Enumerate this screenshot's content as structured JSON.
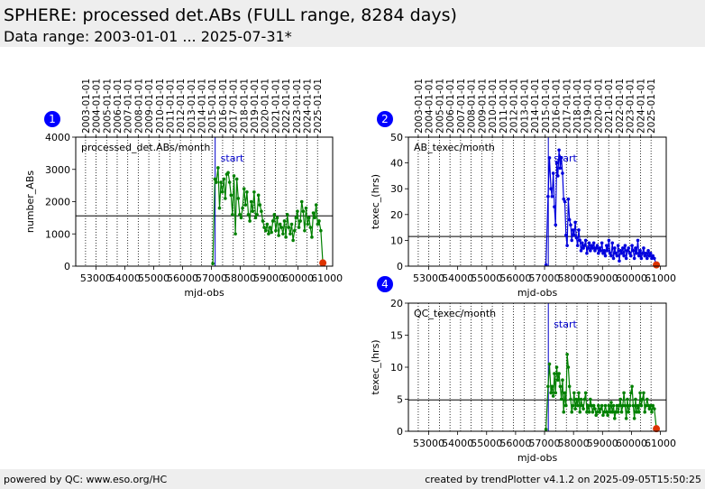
{
  "header": {
    "title": "SPHERE: processed det.ABs (FULL range, 8284 days)",
    "subtitle": "Data range: 2003-01-01 ... 2025-07-31*"
  },
  "footer": {
    "left": "powered by QC: www.eso.org/HC",
    "right": "created by trendPlotter v4.1.2 on 2025-09-05T15:50:25"
  },
  "colors": {
    "green": "#008000",
    "blue": "#0000dd",
    "badge": "#0000ff",
    "last_point": "#dd3300",
    "start_line": "#0000cc"
  },
  "chart_data": [
    {
      "id": "1",
      "type": "line",
      "annotation": "processed_det.ABs/month",
      "start_label": "start",
      "start_x": 57130,
      "xlabel": "mjd-obs",
      "ylabel": "number_ABs",
      "xlim": [
        52300,
        61200
      ],
      "ylim": [
        0,
        4000
      ],
      "xticks": [
        53000,
        54000,
        55000,
        56000,
        57000,
        58000,
        59000,
        60000,
        61000
      ],
      "yticks": [
        0,
        1000,
        2000,
        3000,
        4000
      ],
      "date_ticks": [
        "2003-01-01",
        "2004-01-01",
        "2005-01-01",
        "2006-01-01",
        "2007-01-01",
        "2008-01-01",
        "2009-01-01",
        "2010-01-01",
        "2011-01-01",
        "2012-01-01",
        "2013-01-01",
        "2014-01-01",
        "2015-01-01",
        "2016-01-01",
        "2017-01-01",
        "2018-01-01",
        "2019-01-01",
        "2020-01-01",
        "2021-01-01",
        "2022-01-01",
        "2023-01-01",
        "2024-01-01",
        "2025-01-01"
      ],
      "date_ticks_mjd": [
        52640,
        53005,
        53371,
        53736,
        54101,
        54466,
        54832,
        55197,
        55562,
        55927,
        56293,
        56658,
        57023,
        57388,
        57754,
        58119,
        58484,
        58849,
        59215,
        59580,
        59945,
        60310,
        60676
      ],
      "hline": 1560,
      "color": "green",
      "x": [
        57050,
        57120,
        57170,
        57230,
        57280,
        57330,
        57380,
        57430,
        57480,
        57530,
        57580,
        57630,
        57680,
        57730,
        57780,
        57830,
        57880,
        57930,
        57980,
        58030,
        58080,
        58130,
        58180,
        58230,
        58280,
        58330,
        58380,
        58430,
        58480,
        58530,
        58580,
        58630,
        58680,
        58730,
        58780,
        58830,
        58880,
        58930,
        58980,
        59030,
        59080,
        59130,
        59180,
        59230,
        59280,
        59330,
        59380,
        59430,
        59480,
        59530,
        59580,
        59630,
        59680,
        59730,
        59780,
        59830,
        59880,
        59930,
        59980,
        60030,
        60080,
        60130,
        60180,
        60230,
        60280,
        60330,
        60380,
        60430,
        60480,
        60530,
        60580,
        60630,
        60680,
        60730,
        60790,
        60860
      ],
      "y": [
        80,
        2700,
        2600,
        3050,
        1800,
        2600,
        2300,
        2700,
        2100,
        2850,
        2900,
        2600,
        2200,
        1600,
        2800,
        1000,
        2700,
        2100,
        1600,
        1500,
        1800,
        2400,
        1900,
        2300,
        1600,
        1400,
        2000,
        1700,
        2300,
        1500,
        1600,
        2200,
        1900,
        1700,
        1400,
        1200,
        1100,
        1300,
        1000,
        1200,
        1050,
        1400,
        1600,
        1100,
        1500,
        950,
        1300,
        1200,
        1000,
        1400,
        900,
        1600,
        1200,
        1000,
        1300,
        800,
        1100,
        1500,
        1700,
        1200,
        1400,
        2000,
        1700,
        1100,
        1800,
        1300,
        1500,
        1200,
        900,
        1650,
        1500,
        1900,
        1300,
        1400,
        1100,
        100
      ]
    },
    {
      "id": "2",
      "type": "line",
      "annotation": "AB_texec/month",
      "start_label": "start",
      "start_x": 57130,
      "xlabel": "mjd-obs",
      "ylabel": "texec_(hrs)",
      "xlim": [
        52300,
        61200
      ],
      "ylim": [
        0,
        50
      ],
      "xticks": [
        53000,
        54000,
        55000,
        56000,
        57000,
        58000,
        59000,
        60000,
        61000
      ],
      "yticks": [
        0,
        10,
        20,
        30,
        40,
        50
      ],
      "date_ticks": [
        "2003-01-01",
        "2004-01-01",
        "2005-01-01",
        "2006-01-01",
        "2007-01-01",
        "2008-01-01",
        "2009-01-01",
        "2010-01-01",
        "2011-01-01",
        "2012-01-01",
        "2013-01-01",
        "2014-01-01",
        "2015-01-01",
        "2016-01-01",
        "2017-01-01",
        "2018-01-01",
        "2019-01-01",
        "2020-01-01",
        "2021-01-01",
        "2022-01-01",
        "2023-01-01",
        "2024-01-01",
        "2025-01-01"
      ],
      "date_ticks_mjd": [
        52640,
        53005,
        53371,
        53736,
        54101,
        54466,
        54832,
        55197,
        55562,
        55927,
        56293,
        56658,
        57023,
        57388,
        57754,
        58119,
        58484,
        58849,
        59215,
        59580,
        59945,
        60310,
        60676
      ],
      "hline": 11.5,
      "color": "blue",
      "x": [
        57050,
        57120,
        57170,
        57220,
        57260,
        57300,
        57340,
        57380,
        57420,
        57460,
        57500,
        57540,
        57580,
        57620,
        57660,
        57700,
        57740,
        57780,
        57820,
        57860,
        57900,
        57940,
        57980,
        58020,
        58060,
        58100,
        58140,
        58180,
        58220,
        58260,
        58300,
        58340,
        58380,
        58420,
        58460,
        58500,
        58540,
        58580,
        58620,
        58660,
        58700,
        58740,
        58780,
        58820,
        58860,
        58900,
        58940,
        58980,
        59020,
        59060,
        59100,
        59140,
        59180,
        59220,
        59260,
        59300,
        59340,
        59380,
        59420,
        59460,
        59500,
        59540,
        59580,
        59620,
        59660,
        59700,
        59740,
        59780,
        59820,
        59860,
        59900,
        59940,
        59980,
        60020,
        60060,
        60100,
        60140,
        60180,
        60220,
        60260,
        60300,
        60340,
        60380,
        60420,
        60460,
        60500,
        60540,
        60580,
        60620,
        60660,
        60700,
        60740,
        60790,
        60860
      ],
      "y": [
        0.5,
        27,
        42,
        30,
        27,
        36,
        23,
        16,
        40,
        35,
        45,
        38,
        42,
        36,
        26,
        25,
        12,
        8,
        26,
        18,
        16,
        10,
        14,
        12,
        17,
        11,
        8,
        14,
        10,
        6,
        9,
        7,
        8,
        10,
        5,
        7,
        9,
        6,
        8,
        7,
        9,
        6,
        7,
        8,
        5,
        7,
        6,
        9,
        5,
        6,
        4,
        8,
        6,
        10,
        5,
        4,
        9,
        3,
        7,
        5,
        4,
        8,
        2,
        6,
        5,
        7,
        4,
        8,
        3,
        6,
        7,
        5,
        4,
        8,
        6,
        3,
        7,
        5,
        10,
        4,
        6,
        3,
        5,
        7,
        4,
        5,
        3,
        6,
        4,
        5,
        3,
        4,
        3,
        0.5
      ]
    },
    {
      "id": "4",
      "type": "line",
      "annotation": "QC_texec/month",
      "start_label": "start",
      "start_x": 57130,
      "xlabel": "mjd-obs",
      "ylabel": "texec_(hrs)",
      "xlim": [
        52300,
        61200
      ],
      "ylim": [
        0,
        20
      ],
      "xticks": [
        53000,
        54000,
        55000,
        56000,
        57000,
        58000,
        59000,
        60000,
        61000
      ],
      "yticks": [
        0,
        5,
        10,
        15,
        20
      ],
      "date_ticks_mjd": [
        52640,
        53005,
        53371,
        53736,
        54101,
        54466,
        54832,
        55197,
        55562,
        55927,
        56293,
        56658,
        57023,
        57388,
        57754,
        58119,
        58484,
        58849,
        59215,
        59580,
        59945,
        60310,
        60676
      ],
      "hline": 4.9,
      "color": "green",
      "x": [
        57050,
        57120,
        57170,
        57220,
        57260,
        57300,
        57340,
        57380,
        57420,
        57460,
        57500,
        57540,
        57580,
        57620,
        57660,
        57700,
        57740,
        57780,
        57820,
        57860,
        57900,
        57940,
        57980,
        58020,
        58060,
        58100,
        58140,
        58180,
        58220,
        58260,
        58300,
        58340,
        58380,
        58420,
        58460,
        58500,
        58540,
        58580,
        58620,
        58660,
        58700,
        58740,
        58780,
        58820,
        58860,
        58900,
        58940,
        58980,
        59020,
        59060,
        59100,
        59140,
        59180,
        59220,
        59260,
        59300,
        59340,
        59380,
        59420,
        59460,
        59500,
        59540,
        59580,
        59620,
        59660,
        59700,
        59740,
        59780,
        59820,
        59860,
        59900,
        59940,
        59980,
        60020,
        60060,
        60100,
        60140,
        60180,
        60220,
        60260,
        60300,
        60340,
        60380,
        60420,
        60460,
        60500,
        60540,
        60580,
        60620,
        60660,
        60700,
        60740,
        60790,
        60860
      ],
      "y": [
        0.3,
        7,
        10.5,
        6,
        7,
        5.5,
        9,
        6,
        10,
        8,
        9,
        7,
        5,
        8,
        3,
        6,
        4,
        12,
        10,
        7,
        5,
        3,
        4,
        6,
        3.5,
        5,
        4,
        6,
        3,
        5,
        4,
        3.5,
        5,
        6,
        3,
        4,
        3,
        5,
        4,
        3,
        4,
        3.5,
        2.5,
        3,
        4,
        3,
        3.5,
        4,
        2.5,
        3,
        4,
        3,
        2.5,
        4,
        3,
        4.5,
        3,
        4,
        2,
        3,
        4,
        3,
        4,
        5,
        3,
        4,
        6,
        4,
        2,
        5,
        3,
        4,
        6,
        7,
        4,
        2,
        5,
        3,
        4,
        3,
        6,
        4,
        5,
        6,
        3,
        4,
        5,
        4,
        3.5,
        4,
        3,
        4,
        3.5,
        0.4
      ]
    }
  ]
}
